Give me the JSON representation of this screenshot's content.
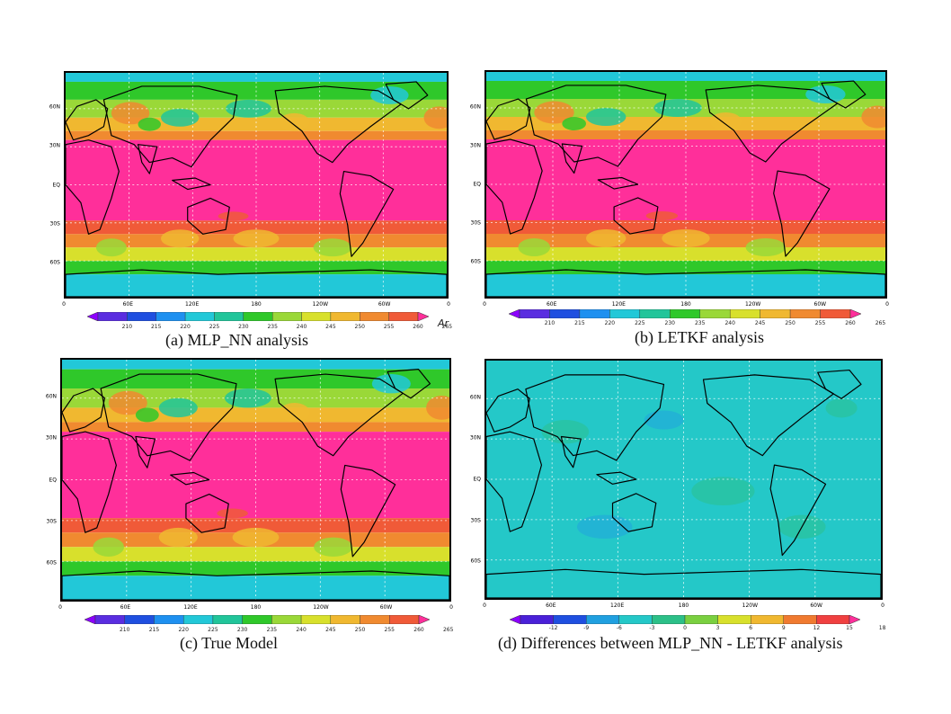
{
  "panels": [
    {
      "id": "a",
      "caption": "(a) MLP_NN analysis",
      "type": "temperature",
      "lat_labels": [
        "60N",
        "30N",
        "EQ",
        "30S",
        "60S"
      ],
      "lon_labels": [
        "0",
        "60E",
        "120E",
        "180",
        "120W",
        "60W",
        "0"
      ],
      "colorbar_labels": [
        "210",
        "215",
        "220",
        "225",
        "230",
        "235",
        "240",
        "245",
        "250",
        "255",
        "260",
        "265"
      ],
      "unit_label": "Ar"
    },
    {
      "id": "b",
      "caption": "(b) LETKF analysis",
      "type": "temperature",
      "lat_labels": [
        "60N",
        "30N",
        "EQ",
        "30S",
        "60S"
      ],
      "lon_labels": [
        "0",
        "60E",
        "120E",
        "180",
        "120W",
        "60W",
        "0"
      ],
      "colorbar_labels": [
        "210",
        "215",
        "220",
        "225",
        "230",
        "235",
        "240",
        "245",
        "250",
        "255",
        "260",
        "265"
      ]
    },
    {
      "id": "c",
      "caption": "(c) True Model",
      "type": "temperature",
      "lat_labels": [
        "60N",
        "30N",
        "EQ",
        "30S",
        "60S"
      ],
      "lon_labels": [
        "0",
        "60E",
        "120E",
        "180",
        "120W",
        "60W",
        "0"
      ],
      "colorbar_labels": [
        "210",
        "215",
        "220",
        "225",
        "230",
        "235",
        "240",
        "245",
        "250",
        "255",
        "260",
        "265"
      ]
    },
    {
      "id": "d",
      "caption": "(d)  Differences between MLP_NN  - LETKF analysis",
      "type": "difference",
      "lat_labels": [
        "60N",
        "30N",
        "EQ",
        "30S",
        "60S"
      ],
      "lon_labels": [
        "0",
        "60E",
        "120E",
        "180",
        "120W",
        "60W",
        "0"
      ],
      "colorbar_labels": [
        "-12",
        "-9",
        "-6",
        "-3",
        "0",
        "3",
        "6",
        "9",
        "12",
        "15",
        "18"
      ]
    }
  ],
  "colors": {
    "temperature_scale": [
      "#8c00ff",
      "#5a2de0",
      "#1f4fe0",
      "#1e90f0",
      "#22c8d8",
      "#21c59a",
      "#2fc82a",
      "#9ad838",
      "#d8e02c",
      "#f0b830",
      "#f08a30",
      "#f05a38",
      "#ff2f9a"
    ],
    "difference_scale": [
      "#8c00ff",
      "#4a20d8",
      "#1f4fe0",
      "#20a0e0",
      "#24c8c8",
      "#2cc088",
      "#7ad040",
      "#d8e02c",
      "#f0b830",
      "#f07a30",
      "#f04040",
      "#ff2f9a"
    ],
    "map_land": "#000000",
    "grid": "#ffffff"
  }
}
